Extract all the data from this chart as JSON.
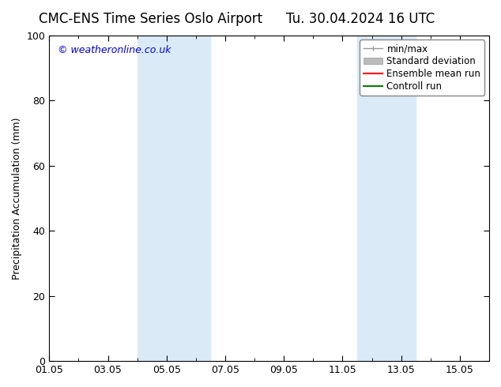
{
  "title_left": "CMC-ENS Time Series Oslo Airport",
  "title_right": "Tu. 30.04.2024 16 UTC",
  "ylabel": "Precipitation Accumulation (mm)",
  "xlabel": "",
  "watermark": "© weatheronline.co.uk",
  "watermark_color": "#0000dd",
  "background_color": "#ffffff",
  "plot_bg_color": "#ffffff",
  "ylim": [
    0,
    100
  ],
  "yticks": [
    0,
    20,
    40,
    60,
    80,
    100
  ],
  "xtick_labels": [
    "01.05",
    "03.05",
    "05.05",
    "07.05",
    "09.05",
    "11.05",
    "13.05",
    "15.05"
  ],
  "xtick_positions": [
    0,
    2,
    4,
    6,
    8,
    10,
    12,
    14
  ],
  "xlim": [
    0,
    15
  ],
  "shaded_regions": [
    {
      "x_start": 3.0,
      "x_end": 5.5,
      "color": "#daeaf7"
    },
    {
      "x_start": 10.5,
      "x_end": 12.5,
      "color": "#daeaf7"
    }
  ],
  "legend_entries": [
    {
      "label": "min/max",
      "color": "#999999",
      "style": "line_with_caps"
    },
    {
      "label": "Standard deviation",
      "color": "#bbbbbb",
      "style": "filled_box"
    },
    {
      "label": "Ensemble mean run",
      "color": "#ff0000",
      "style": "line"
    },
    {
      "label": "Controll run",
      "color": "#008000",
      "style": "line"
    }
  ],
  "title_fontsize": 12,
  "tick_fontsize": 9,
  "legend_fontsize": 8.5,
  "ylabel_fontsize": 9
}
